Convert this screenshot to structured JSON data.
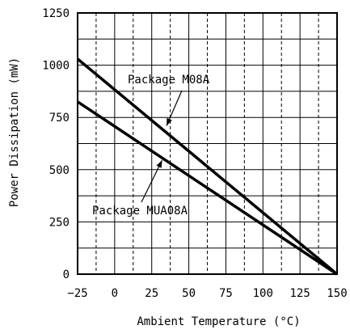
{
  "chart_data": {
    "type": "line",
    "xlabel": "Ambient Temperature (°C)",
    "ylabel": "Power Dissipation (mW)",
    "xlim": [
      -25,
      150
    ],
    "ylim": [
      0,
      1250
    ],
    "x_ticks": [
      -25,
      0,
      25,
      50,
      75,
      100,
      125,
      150
    ],
    "y_ticks": [
      0,
      250,
      500,
      750,
      1000,
      1250
    ],
    "x_tick_labels": [
      "−25",
      "0",
      "25",
      "50",
      "75",
      "100",
      "125",
      "150"
    ],
    "y_tick_labels": [
      "0",
      "250",
      "500",
      "750",
      "1000",
      "1250"
    ],
    "grid": {
      "major_solid": true,
      "minor_dashed_vertical": true,
      "minor_solid_horizontal": true
    },
    "series": [
      {
        "name": "Package M08A",
        "x": [
          -25,
          150
        ],
        "y": [
          1030,
          0
        ]
      },
      {
        "name": "Package MUA08A",
        "x": [
          -25,
          150
        ],
        "y": [
          825,
          0
        ]
      }
    ],
    "annotations": [
      {
        "text": "Package M08A",
        "series": 0,
        "at": [
          35,
          710
        ]
      },
      {
        "text": "Package MUA08A",
        "series": 1,
        "at": [
          32,
          545
        ]
      }
    ]
  }
}
